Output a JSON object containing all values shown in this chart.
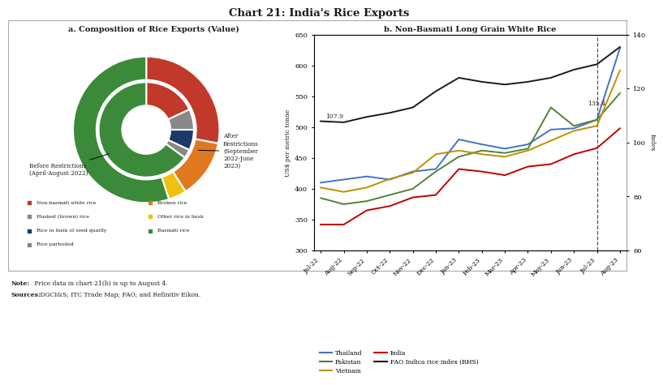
{
  "title": "Chart 21: India's Rice Exports",
  "panel_a_title": "a. Composition of Rice Exports (Value)",
  "panel_b_title": "b. Non-Basmati Long Grain White Rice",
  "donut_outer": {
    "labels": [
      "Non-basmati white rice",
      "Broken rice",
      "Other rice in husk",
      "Basmati rice"
    ],
    "values": [
      28,
      13,
      4,
      55
    ],
    "colors": [
      "#c0392b",
      "#e07820",
      "#f0c010",
      "#3a8a3a"
    ],
    "startangle": 90
  },
  "donut_inner": {
    "labels": [
      "Non-basmati white rice",
      "Husked (brown) rice",
      "Rice in husk of seed quality",
      "Rice parboiled",
      "Basmati rice"
    ],
    "values": [
      18,
      7,
      7,
      3,
      65
    ],
    "colors": [
      "#c0392b",
      "#888888",
      "#1a3a6a",
      "#888888",
      "#3a8a3a"
    ],
    "startangle": 90
  },
  "months": [
    "Jul-22",
    "Aug-22",
    "Sep-22",
    "Oct-22",
    "Nov-22",
    "Dec-22",
    "Jan-23",
    "Feb-23",
    "Mar-23",
    "Apr-23",
    "May-23",
    "Jun-23",
    "Jul-23",
    "Aug-23"
  ],
  "thailand": [
    410,
    415,
    420,
    415,
    428,
    432,
    480,
    472,
    465,
    472,
    496,
    498,
    512,
    628
  ],
  "pakistan": [
    385,
    375,
    380,
    390,
    400,
    428,
    452,
    462,
    458,
    465,
    532,
    502,
    512,
    555
  ],
  "vietnam": [
    402,
    395,
    402,
    416,
    426,
    456,
    462,
    456,
    452,
    462,
    478,
    494,
    502,
    592
  ],
  "india": [
    342,
    342,
    365,
    372,
    386,
    390,
    432,
    428,
    422,
    436,
    440,
    456,
    466,
    498
  ],
  "fao_index": [
    107.9,
    107.5,
    109.5,
    111,
    113,
    119,
    124,
    122.5,
    121.5,
    122.5,
    124,
    127,
    129,
    135.4
  ],
  "thailand_color": "#4472c4",
  "pakistan_color": "#548235",
  "vietnam_color": "#bf8f00",
  "india_color": "#c00000",
  "fao_color": "#1a1a1a",
  "ylim_left": [
    300,
    650
  ],
  "ylim_right": [
    60,
    140
  ],
  "yticks_left": [
    300,
    350,
    400,
    450,
    500,
    550,
    600,
    650
  ],
  "yticks_right": [
    60,
    80,
    100,
    120,
    140
  ],
  "note_bold": "Note:",
  "note_rest": " Price data in chart 21(b) is up to August 4.",
  "source_bold": "Sources:",
  "source_rest": " DGCI&S; ITC Trade Map; FAO; and Refinitiv Eikon.",
  "legend_items": [
    {
      "label": "Non-basmati white rice",
      "color": "#c0392b",
      "marker": "s"
    },
    {
      "label": "Husked (brown) rice",
      "color": "#888888",
      "marker": "s"
    },
    {
      "label": "Rice in husk of seed quality",
      "color": "#1a3a6a",
      "marker": "s"
    },
    {
      "label": "Rice parboiled",
      "color": "#888888",
      "marker": "s"
    },
    {
      "label": "Broken rice",
      "color": "#e07820",
      "marker": "s"
    },
    {
      "label": "Other rice in husk",
      "color": "#f0c010",
      "marker": "s"
    },
    {
      "label": "Basmati rice",
      "color": "#3a8a3a",
      "marker": "s"
    }
  ]
}
